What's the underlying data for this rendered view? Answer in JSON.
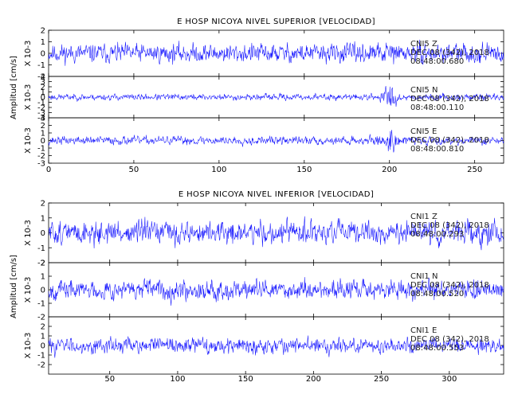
{
  "chart_data": [
    {
      "type": "line",
      "title": "E HOSP NICOYA NIVEL SUPERIOR [VELOCIDAD]",
      "ylabel": "Amplitud [cm/s]",
      "xlim": [
        0,
        267
      ],
      "x_ticks": [
        0,
        50,
        100,
        150,
        200,
        250
      ],
      "series": [
        {
          "ylim": [
            -2,
            2
          ],
          "y_ticks": [
            -2,
            -1,
            0,
            1,
            2
          ],
          "scale_label": "X 10-3",
          "amp": 1.1,
          "burst_at": 200,
          "burst_gain": 1.2,
          "seed": 11,
          "annotation": [
            "CNI5 Z",
            "DEC 08 (342), 2018",
            "08:48:00.680"
          ]
        },
        {
          "ylim": [
            -4,
            4
          ],
          "y_ticks": [
            -4,
            -3,
            -2,
            -1,
            0,
            1,
            2,
            3,
            4
          ],
          "scale_label": "X 10-3",
          "amp": 0.8,
          "burst_at": 200,
          "burst_gain": 4.5,
          "seed": 23,
          "annotation": [
            "CNI5 N",
            "DEC 08 (342), 2018",
            "08:48:00.110"
          ]
        },
        {
          "ylim": [
            -3,
            3
          ],
          "y_ticks": [
            -3,
            -2,
            -1,
            0,
            1,
            2,
            3
          ],
          "scale_label": "X 10-3",
          "amp": 0.75,
          "burst_at": 200,
          "burst_gain": 3.2,
          "seed": 37,
          "annotation": [
            "CNI5 E",
            "DEC 08 (342), 2018",
            "08:48:00.810"
          ]
        }
      ]
    },
    {
      "type": "line",
      "title": "E HOSP NICOYA NIVEL INFERIOR [VELOCIDAD]",
      "ylabel": "Amplitud [cm/s]",
      "xlim": [
        5,
        340
      ],
      "x_ticks": [
        50,
        100,
        150,
        200,
        250,
        300
      ],
      "series": [
        {
          "ylim": [
            -2,
            2
          ],
          "y_ticks": [
            -2,
            -1,
            0,
            1,
            2
          ],
          "scale_label": "X 10-3",
          "amp": 1.05,
          "burst_at": 0,
          "burst_gain": 1.0,
          "seed": 51,
          "annotation": [
            "CNI1 Z",
            "DEC 08 (342), 2018",
            "08:48:00.293"
          ]
        },
        {
          "ylim": [
            -2,
            2
          ],
          "y_ticks": [
            -2,
            -1,
            0,
            1,
            2
          ],
          "scale_label": "X 10-3",
          "amp": 0.95,
          "burst_at": 0,
          "burst_gain": 1.0,
          "seed": 67,
          "annotation": [
            "CNI1 N",
            "DEC 08 (342), 2018",
            "08:48:00.520"
          ]
        },
        {
          "ylim": [
            -3,
            3
          ],
          "y_ticks": [
            -2,
            -1,
            0,
            1,
            2
          ],
          "scale_label": "X 10-3",
          "amp": 1.1,
          "burst_at": 0,
          "burst_gain": 1.0,
          "seed": 83,
          "annotation": [
            "CNI1 E",
            "DEC 08 (342), 2018",
            "08:48:00.553"
          ]
        }
      ]
    }
  ]
}
